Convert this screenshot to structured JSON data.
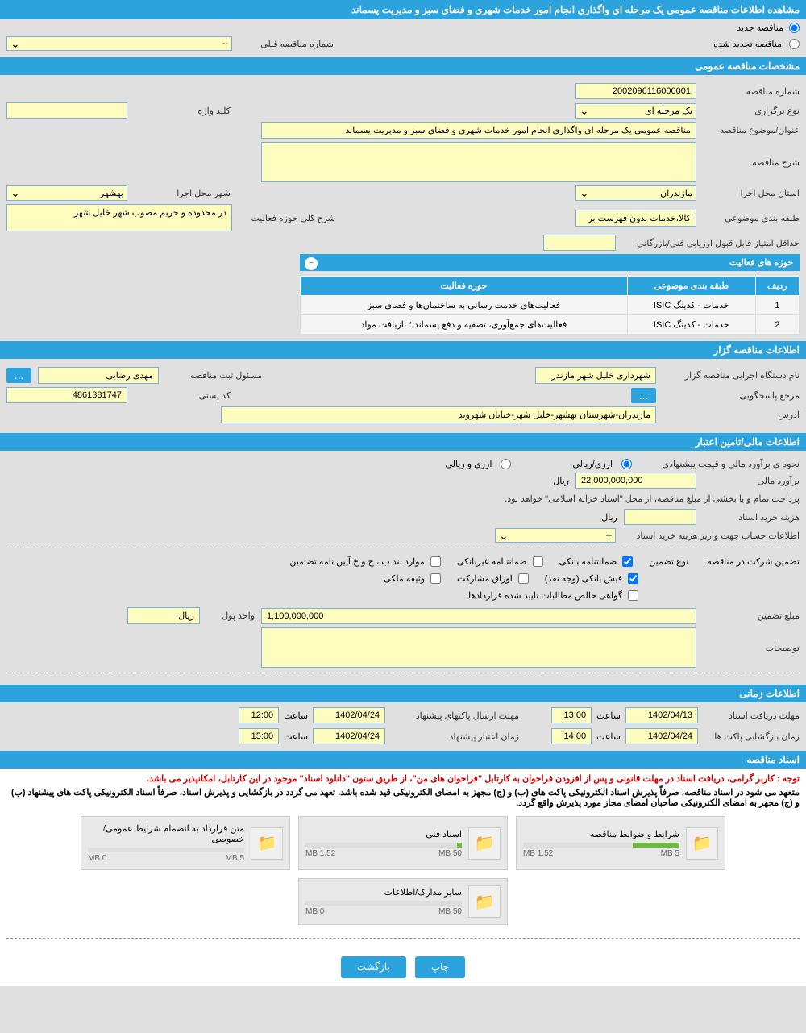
{
  "page": {
    "title": "مشاهده اطلاعات مناقصه عمومی یک مرحله ای واگذاری انجام امور خدمات شهری و فضای سبز و مدیریت پسماند"
  },
  "top_options": {
    "new_tender": "مناقصه جدید",
    "renewed_tender": "مناقصه تجدید شده",
    "prev_number_label": "شماره مناقصه قبلی",
    "prev_number_value": "--"
  },
  "sections": {
    "general": "مشخصات مناقصه عمومی",
    "organizer": "اطلاعات مناقصه گزار",
    "financial": "اطلاعات مالی/تامین اعتبار",
    "timing": "اطلاعات زمانی",
    "documents": "اسناد مناقصه"
  },
  "general": {
    "number_label": "شماره مناقصه",
    "number_value": "2002096116000001",
    "type_label": "نوع برگزاری",
    "type_value": "یک مرحله ای",
    "keyword_label": "کلید واژه",
    "keyword_value": "",
    "subject_label": "عنوان/موضوع مناقصه",
    "subject_value": "مناقصه عمومی یک مرحله ای واگذاری انجام امور خدمات شهری و فضای سبز و مدیریت پسماند",
    "desc_label": "شرح مناقصه",
    "desc_value": "",
    "province_label": "استان محل اجرا",
    "province_value": "مازندران",
    "city_label": "شهر محل اجرا",
    "city_value": "بهشهر",
    "category_label": "طبقه بندی موضوعی",
    "category_value": "کالا،خدمات بدون فهرست بر",
    "activity_scope_label": "شرح کلی حوزه فعالیت",
    "activity_scope_value": "در محدوده و حریم مصوب شهر خلیل شهر",
    "min_score_label": "حداقل امتیاز قابل قبول ارزیابی فنی/بازرگانی",
    "min_score_value": ""
  },
  "activity_table": {
    "header": "حوزه های فعالیت",
    "cols": {
      "row": "ردیف",
      "category": "طبقه بندی موضوعی",
      "scope": "حوزه فعالیت"
    },
    "rows": [
      {
        "n": "1",
        "cat": "خدمات - کدینگ ISIC",
        "scope": "فعالیت‌های خدمت رسانی به ساختمان‌ها و فضای سبز"
      },
      {
        "n": "2",
        "cat": "خدمات - کدینگ ISIC",
        "scope": "فعالیت‌های جمع‌آوری، تصفیه و دفع پسماند ؛ بازیافت مواد"
      }
    ]
  },
  "organizer": {
    "exec_label": "نام دستگاه اجرایی مناقصه گزار",
    "exec_value": "شهرداری خلیل شهر مازندر",
    "responsible_label": "مسئول ثبت مناقصه",
    "responsible_value": "مهدی رضایی",
    "response_ref_label": "مرجع پاسخگویی",
    "postal_label": "کد پستی",
    "postal_value": "4861381747",
    "address_label": "آدرس",
    "address_value": "مازندران-شهرستان بهشهر-خلیل شهر-خیابان شهروند"
  },
  "financial": {
    "estimate_method_label": "نحوه ی برآورد مالی و قیمت پیشنهادی",
    "opt_rial": "ارزی/ریالی",
    "opt_currency": "ارزی و ریالی",
    "estimate_label": "برآورد مالی",
    "estimate_value": "22,000,000,000",
    "currency": "ریال",
    "payment_note": "پرداخت تمام و یا بخشی از مبلغ مناقصه، از محل \"اسناد خزانه اسلامی\" خواهد بود.",
    "doc_cost_label": "هزینه خرید اسناد",
    "doc_cost_value": "",
    "account_label": "اطلاعات حساب جهت واریز هزینه خرید اسناد",
    "account_value": "--",
    "guarantee_label": "تضمین شرکت در مناقصه:",
    "guarantee_types_label": "نوع تضمین",
    "chk_bank": "ضمانتنامه بانکی",
    "chk_nonbank": "ضمانتنامه غیربانکی",
    "chk_bylaw": "موارد بند ب ، ج و خ آیین نامه تضامین",
    "chk_cash": "فیش بانکی (وجه نقد)",
    "chk_securities": "اوراق مشارکت",
    "chk_property": "وثیقه ملکی",
    "chk_receivables": "گواهی خالص مطالبات تایید شده قراردادها",
    "guarantee_amount_label": "مبلغ تضمین",
    "guarantee_amount_value": "1,100,000,000",
    "unit_label": "واحد پول",
    "unit_value": "ریال",
    "notes_label": "توضیحات",
    "notes_value": ""
  },
  "timing": {
    "doc_deadline_label": "مهلت دریافت اسناد",
    "doc_deadline_date": "1402/04/13",
    "doc_deadline_time": "13:00",
    "packet_deadline_label": "مهلت ارسال پاکتهای پیشنهاد",
    "packet_deadline_date": "1402/04/24",
    "packet_deadline_time": "12:00",
    "opening_label": "زمان بازگشایی پاکت ها",
    "opening_date": "1402/04/24",
    "opening_time": "14:00",
    "validity_label": "زمان اعتبار پیشنهاد",
    "validity_date": "1402/04/24",
    "validity_time": "15:00",
    "time_label": "ساعت"
  },
  "documents": {
    "note1": "توجه : کاربر گرامی، دریافت اسناد در مهلت قانونی و پس از افزودن فراخوان به کارتابل \"فراخوان های من\"، از طریق ستون \"دانلود اسناد\" موجود در این کارتابل، امکانپذیر می باشد.",
    "note2": "متعهد می شود در اسناد مناقصه، صرفاً پذیرش اسناد الکترونیکی پاکت های (ب) و (ج) مجهز به امضای الکترونیکی قید شده باشد. تعهد می گردد در بازگشایی و پذیرش اسناد، صرفاً اسناد الکترونیکی پاکت های پیشنهاد (ب) و (ج) مجهز به امضای الکترونیکی صاحبان امضای مجاز مورد پذیرش واقع گردد.",
    "files": [
      {
        "title": "شرایط و ضوابط مناقصه",
        "used": "1.52 MB",
        "total": "5 MB",
        "pct": 30
      },
      {
        "title": "اسناد فنی",
        "used": "1.52 MB",
        "total": "50 MB",
        "pct": 3
      },
      {
        "title": "متن قرارداد به انضمام شرایط عمومی/خصوصی",
        "used": "0 MB",
        "total": "5 MB",
        "pct": 0
      },
      {
        "title": "سایر مدارک/اطلاعات",
        "used": "0 MB",
        "total": "50 MB",
        "pct": 0
      }
    ]
  },
  "footer": {
    "print": "چاپ",
    "back": "بازگشت"
  }
}
